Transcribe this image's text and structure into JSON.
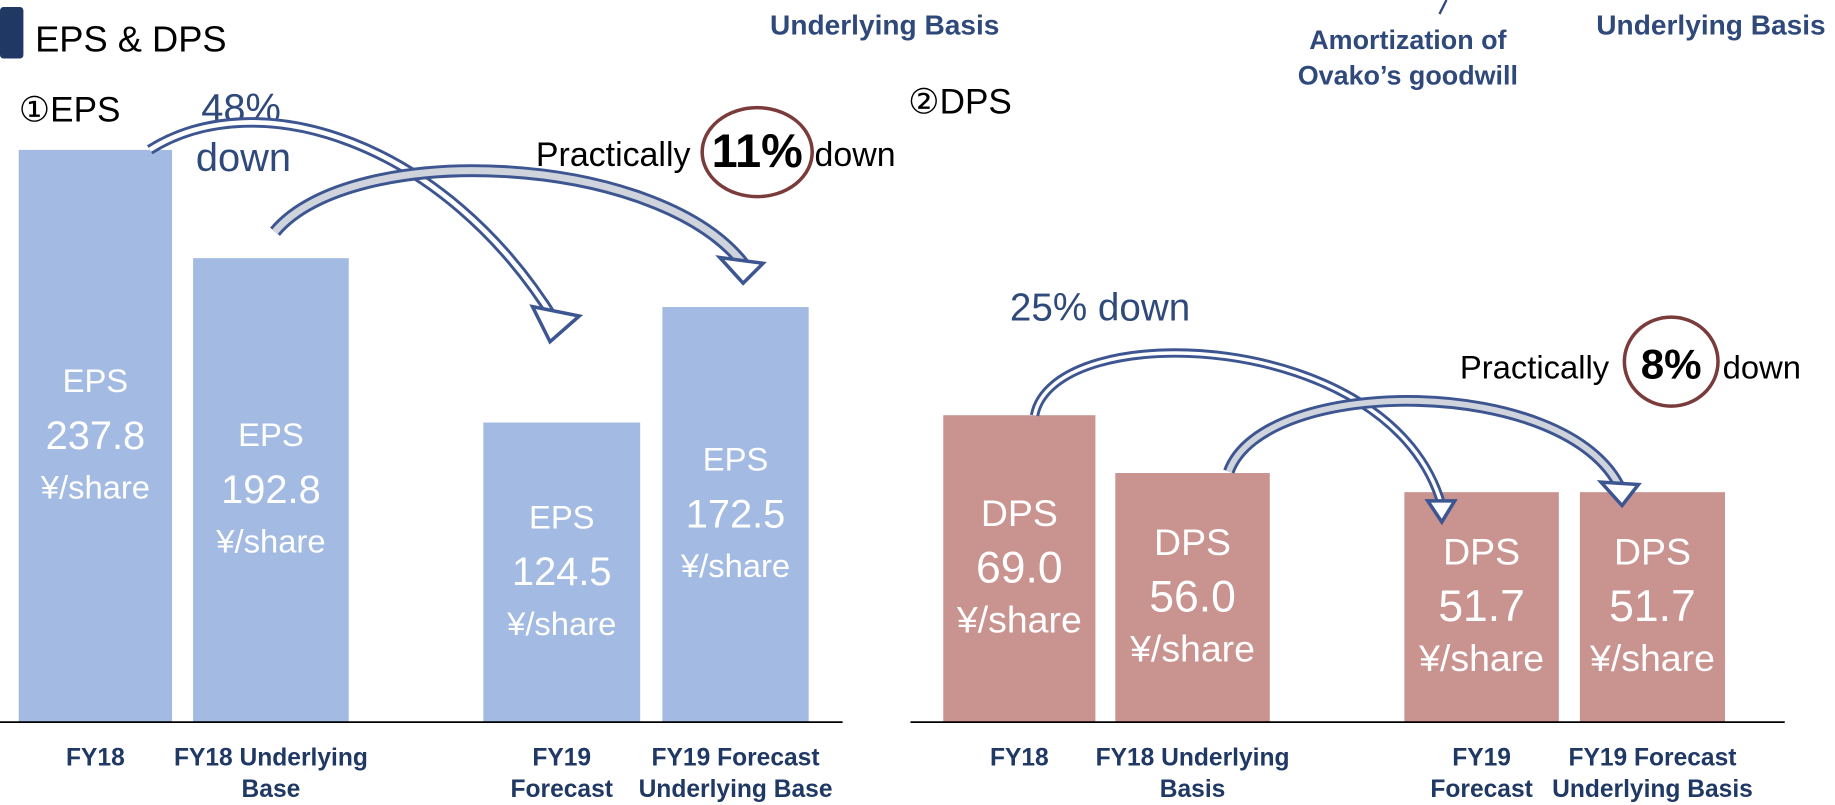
{
  "title": "EPS & DPS",
  "header_notes": [
    "Underlying Basis",
    "Amortization of",
    "Ovako’s goodwill",
    "Underlying Basis"
  ],
  "chart_data": [
    {
      "type": "bar",
      "title": "①EPS",
      "bar_label": "EPS",
      "unit": "¥/share",
      "categories": [
        "FY18",
        "FY18 Underlying Base",
        "FY19 Forecast",
        "FY19 Forecast Underlying Base"
      ],
      "values": [
        237.8,
        192.8,
        124.5,
        172.5
      ],
      "color": "#a3bbe2",
      "ylim": [
        0,
        250
      ],
      "annotations": [
        "48%",
        "down",
        "Practically",
        "11%",
        "down"
      ]
    },
    {
      "type": "bar",
      "title": "②DPS",
      "bar_label": "DPS",
      "unit": "¥/share",
      "categories": [
        "FY18",
        "FY18 Underlying Basis",
        "FY19 Forecast",
        "FY19 Forecast Underlying Basis"
      ],
      "values": [
        69,
        56,
        51.7,
        51.7
      ],
      "value_labels": [
        "69.0",
        "56.0",
        "51.7",
        "51.7"
      ],
      "color": "#c99390",
      "ylim": [
        0,
        80
      ],
      "annotations": [
        "25% down",
        "Practically",
        "8%",
        "down"
      ]
    }
  ]
}
